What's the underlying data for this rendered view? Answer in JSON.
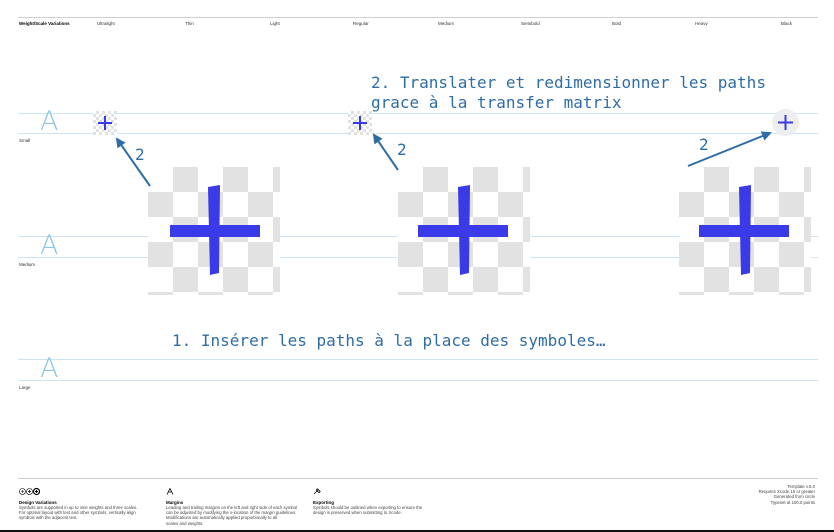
{
  "header": {
    "columns": [
      "Weight/Scale Variations",
      "Ultralight",
      "Thin",
      "Light",
      "Regular",
      "Medium",
      "Semibold",
      "Bold",
      "Heavy",
      "Black"
    ]
  },
  "rows": [
    {
      "label": "Small",
      "glyph": "A"
    },
    {
      "label": "Medium",
      "glyph": "A"
    },
    {
      "label": "Large",
      "glyph": "A"
    }
  ],
  "annotations": {
    "step2_line1": "2. Translater et redimensionner les paths",
    "step2_line2": "grace à la transfer matrix",
    "step1": "1. Insérer les paths à la place des symboles…",
    "marker": "2"
  },
  "colors": {
    "annotation": "#2f6da6",
    "plus": "#3a3ae8",
    "guide": "#cfe3f2",
    "glyph": "#8fc6e6"
  },
  "footer": {
    "design": {
      "icon": "variation-circles-icon",
      "title": "Design Variations",
      "lines": [
        "Symbols are supported in up to nine weights and three scales.",
        "For optimal layout with text and other symbols, vertically align",
        "symbols with the adjacent text."
      ]
    },
    "margins": {
      "icon": "margin-a-icon",
      "title": "Margins",
      "lines": [
        "Leading and trailing margins on the left and right side of each symbol",
        "can be adjusted by modifying the x-location of the margin guidelines.",
        "Modifications are automatically applied proportionally to all",
        "scales and weights."
      ]
    },
    "exporting": {
      "icon": "exporting-tool-icon",
      "title": "Exporting",
      "lines": [
        "Symbols should be outlined when exporting to ensure the",
        "design is preserved when submitting to Xcode."
      ]
    },
    "template": {
      "lines": [
        "Template v.5.0",
        "Requires Xcode 15 or greater",
        "Generated from circle",
        "Typeset at 100.0 points"
      ]
    }
  }
}
